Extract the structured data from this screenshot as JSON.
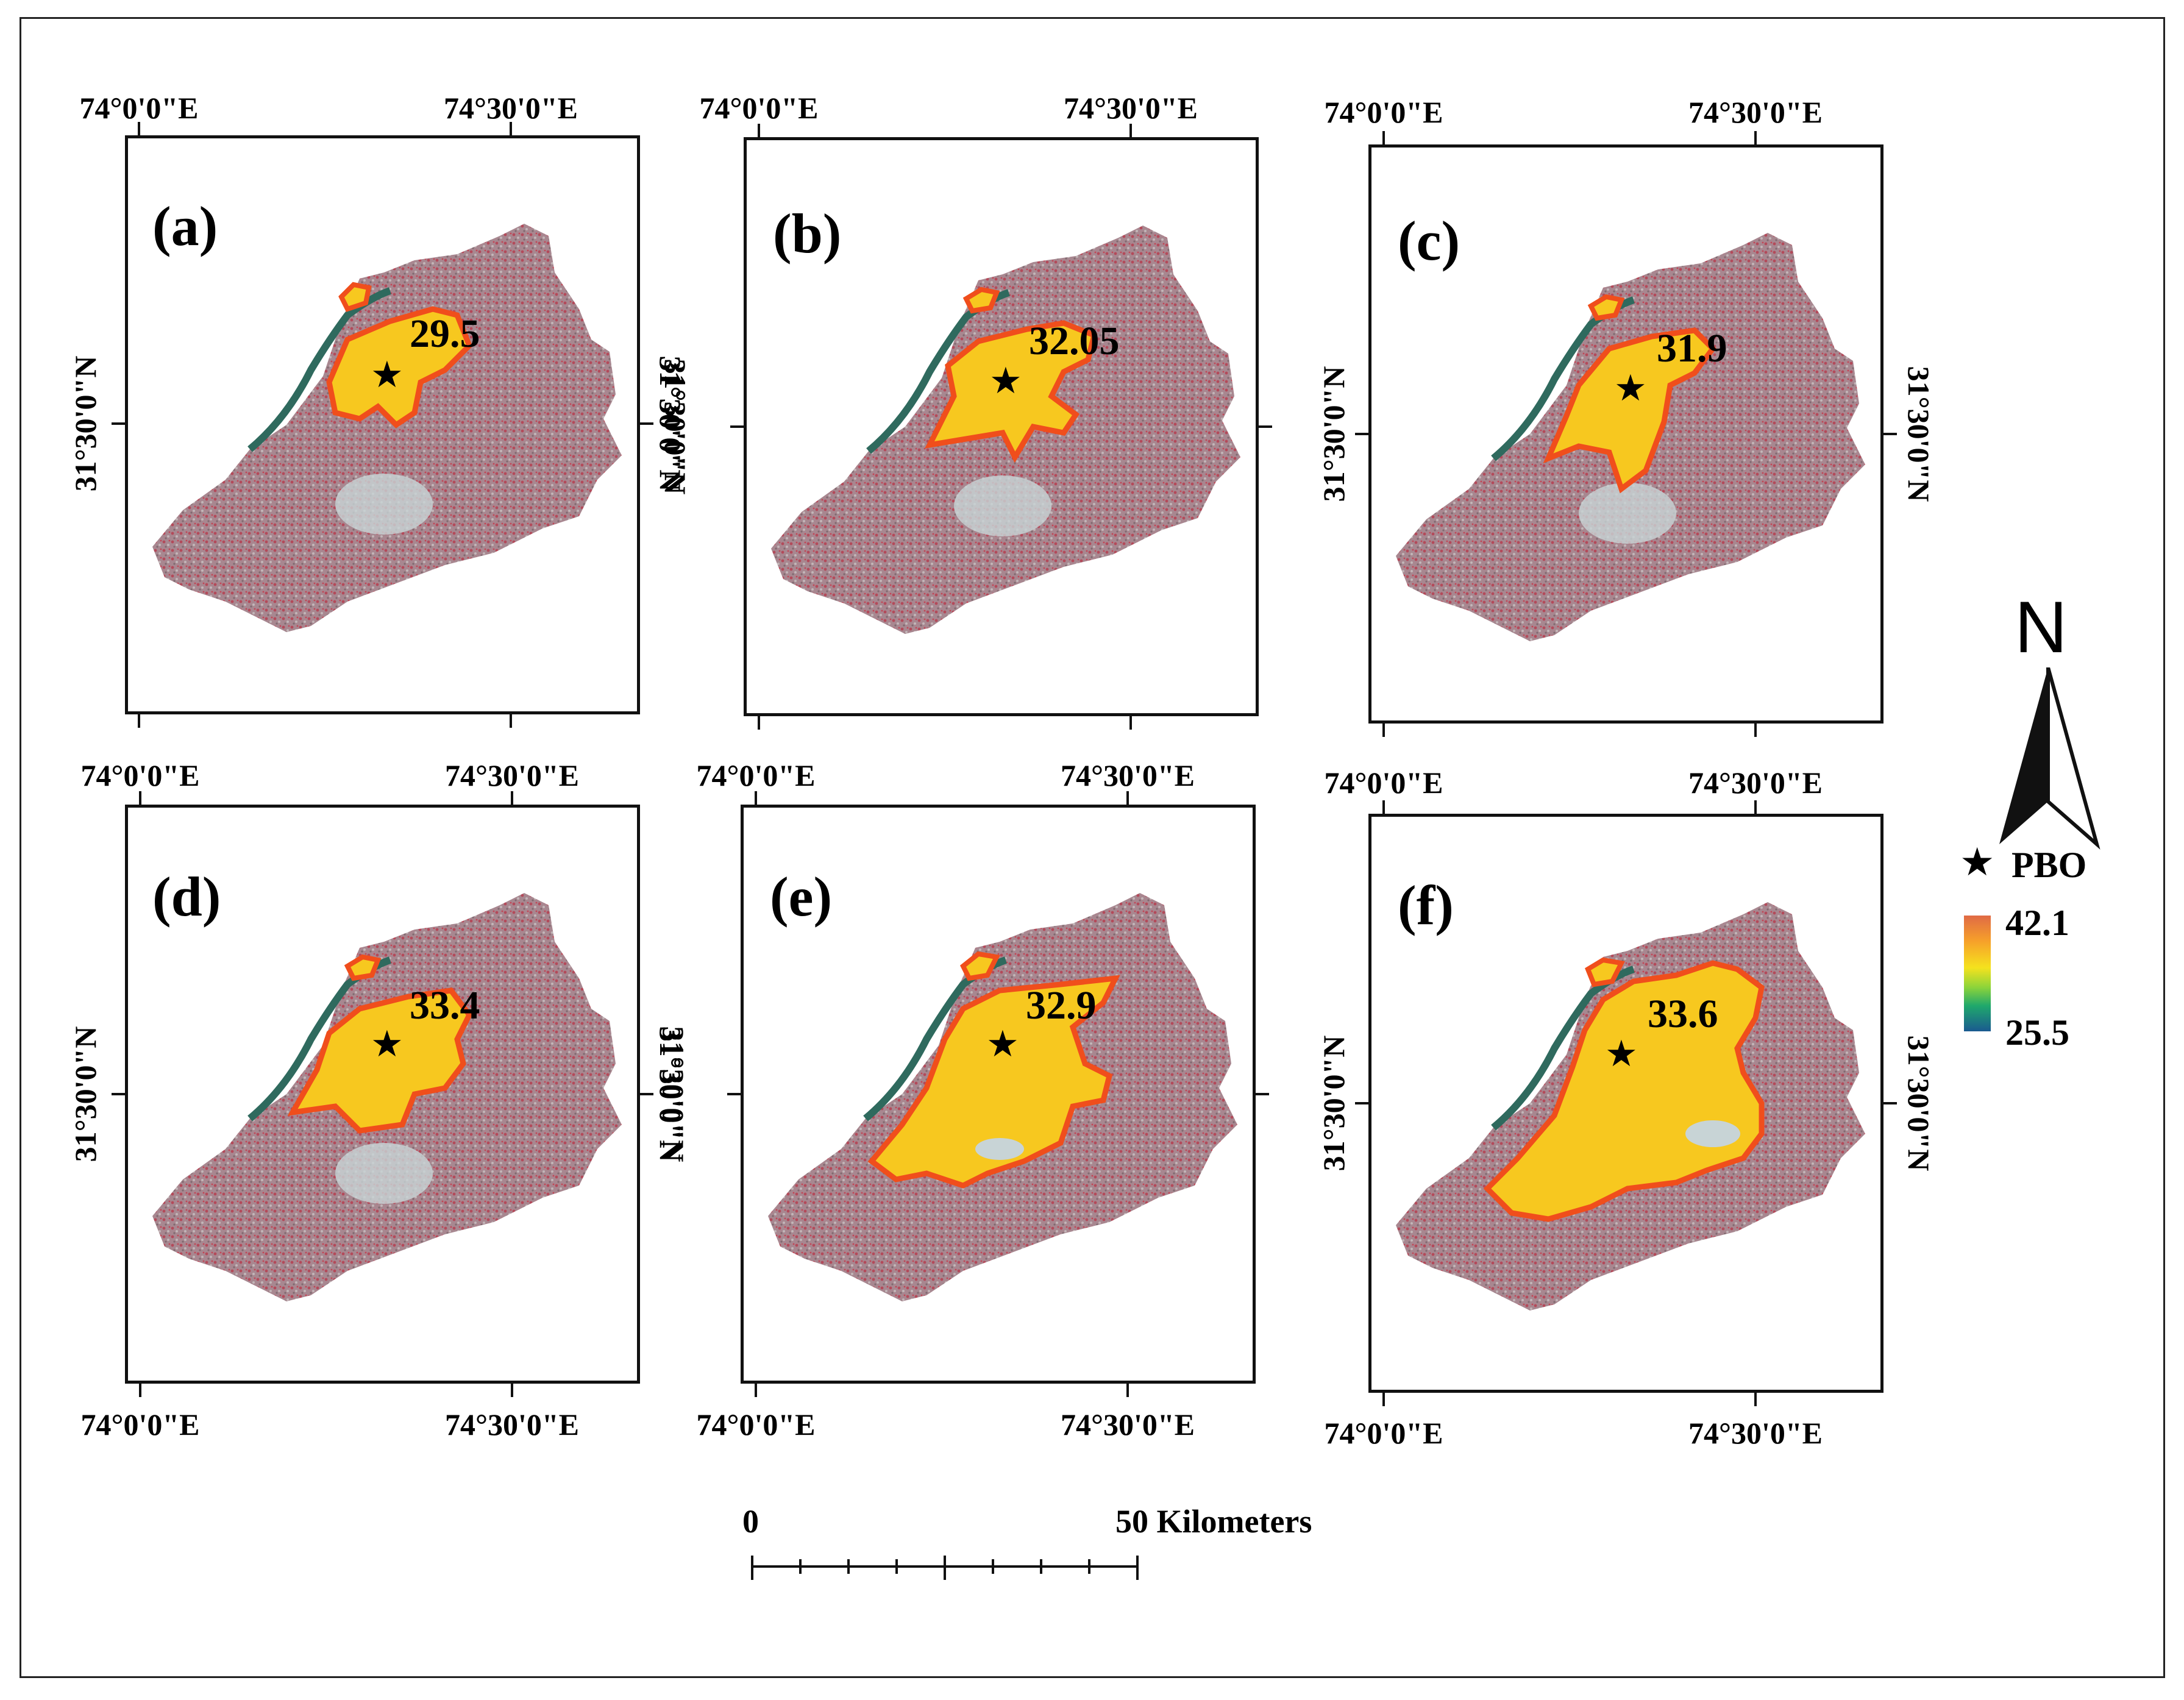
{
  "panels": [
    {
      "label": "(a)",
      "temperature": "29.5"
    },
    {
      "label": "(b)",
      "temperature": "32.05"
    },
    {
      "label": "(c)",
      "temperature": "31.9"
    },
    {
      "label": "(d)",
      "temperature": "33.4"
    },
    {
      "label": "(e)",
      "temperature": "32.9"
    },
    {
      "label": "(f)",
      "temperature": "33.6"
    }
  ],
  "axes": {
    "lon_left": "74°0'0\"E",
    "lon_right": "74°30'0\"E",
    "lat": "31°30'0\"N"
  },
  "legend": {
    "north": "N",
    "pbo_symbol": "★",
    "pbo_label": "PBO",
    "max": "42.1",
    "min": "25.5"
  },
  "scale_bar": {
    "start": "0",
    "end_label": "50 Kilometers"
  },
  "colors": {
    "hotspot_fill": "#f7c81f",
    "hotspot_outline": "#f04e1c",
    "map_base": "#a47f88",
    "river": "#2f6a5e"
  }
}
